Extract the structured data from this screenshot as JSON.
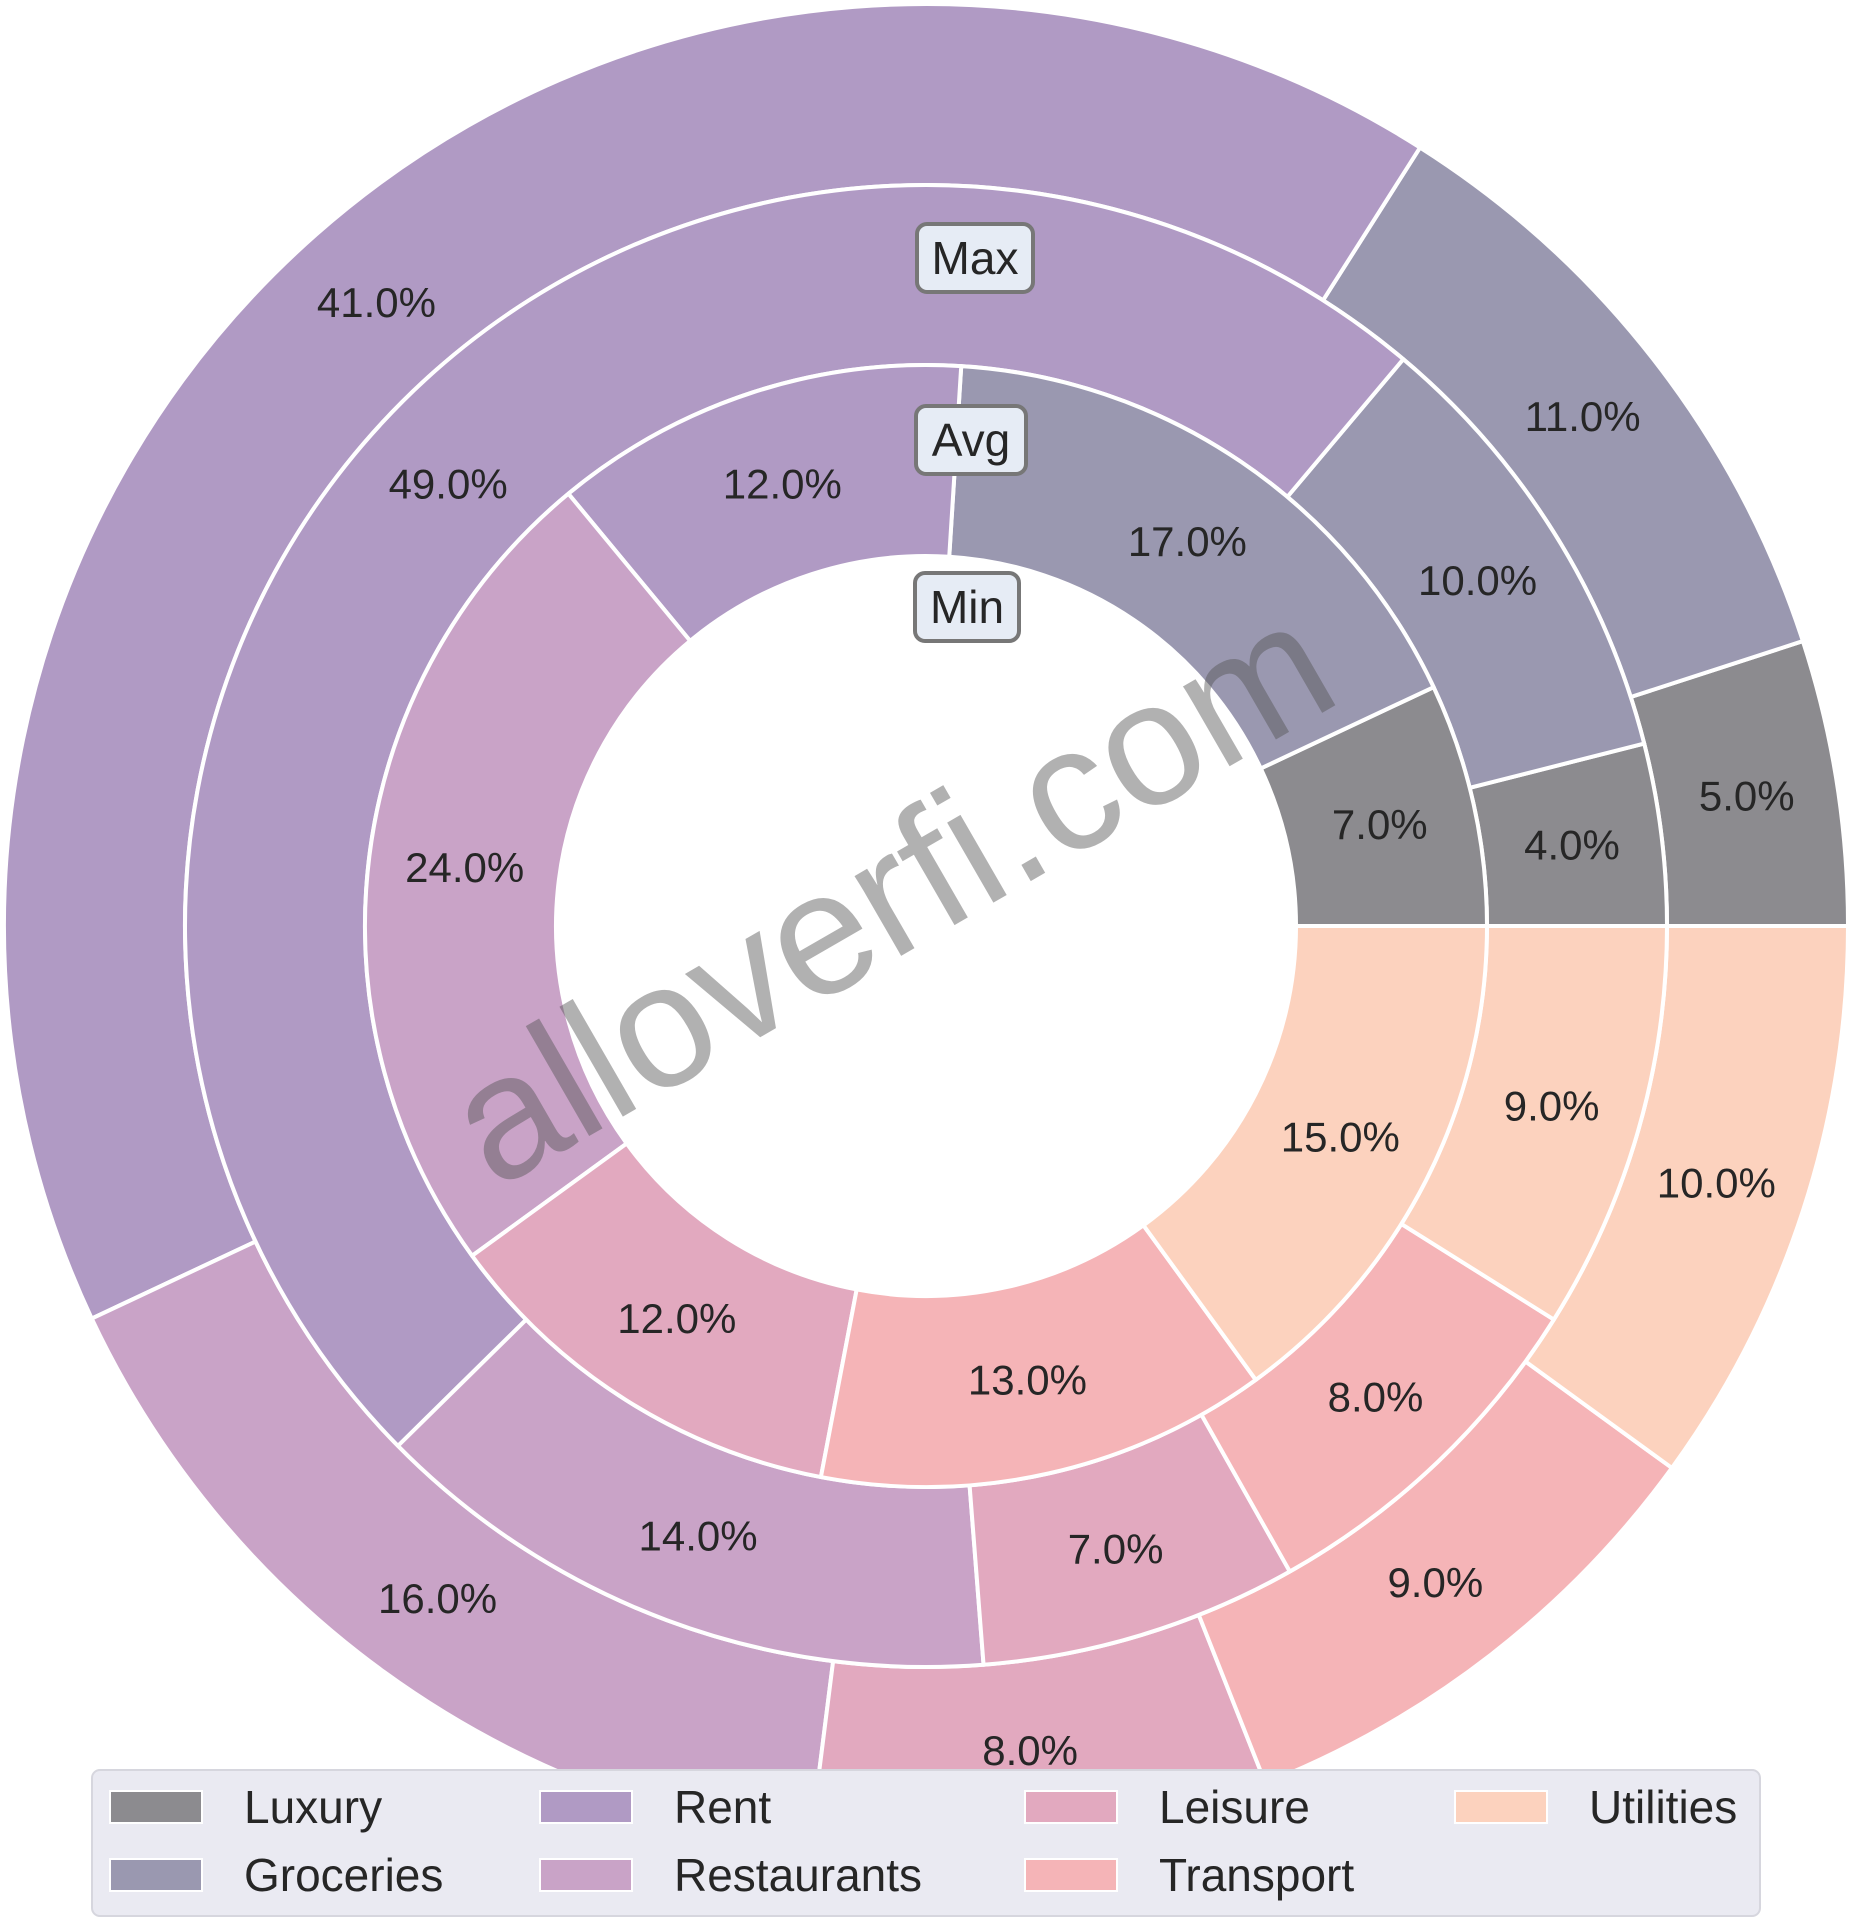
{
  "chart_data": {
    "type": "nested-donut",
    "title": "",
    "categories": [
      "Luxury",
      "Groceries",
      "Rent",
      "Restaurants",
      "Leisure",
      "Transport",
      "Utilities"
    ],
    "colors": {
      "Luxury": "#8c8b8f",
      "Groceries": "#9a98b0",
      "Rent": "#b09ac4",
      "Restaurants": "#c9a3c7",
      "Leisure": "#e2a9bf",
      "Transport": "#f5b4b7",
      "Utilities": "#fcd2be"
    },
    "series": [
      {
        "name": "Max",
        "values": [
          5.0,
          11.0,
          41.0,
          16.0,
          8.0,
          9.0,
          10.0
        ]
      },
      {
        "name": "Avg",
        "values": [
          4.0,
          10.0,
          49.0,
          14.0,
          7.0,
          8.0,
          9.0
        ]
      },
      {
        "name": "Min",
        "values": [
          7.0,
          17.0,
          12.0,
          24.0,
          12.0,
          13.0,
          15.0
        ]
      }
    ],
    "value_format": "percent, 1 decimal",
    "start_angle_deg": 0,
    "direction": "counterclockwise",
    "legend": {
      "placement": "bottom",
      "columns": 4,
      "entries": [
        "Luxury",
        "Groceries",
        "Rent",
        "Restaurants",
        "Leisure",
        "Transport",
        "Utilities"
      ]
    }
  },
  "watermark": "alloverfi.com"
}
